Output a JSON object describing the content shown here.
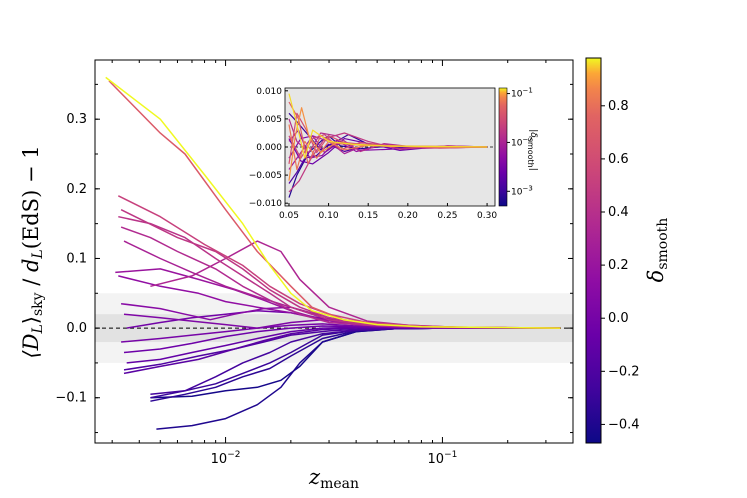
{
  "chart_data": {
    "type": "line",
    "xscale": "log",
    "xlabel": "z_mean",
    "ylabel": "⟨D_L⟩_sky / d_L(EdS) − 1",
    "xlim": [
      0.0025,
      0.4
    ],
    "ylim": [
      -0.165,
      0.385
    ],
    "x_tick_labels": [
      {
        "value": 0.01,
        "base": "10",
        "exp": "−2"
      },
      {
        "value": 0.1,
        "base": "10",
        "exp": "−1"
      }
    ],
    "y_ticks": [
      -0.1,
      0.0,
      0.1,
      0.2,
      0.3
    ],
    "y_tick_labels": [
      "−0.1",
      "0.0",
      "0.1",
      "0.2",
      "0.3"
    ],
    "bands": [
      {
        "name": "outer",
        "from": -0.05,
        "to": 0.05
      },
      {
        "name": "inner",
        "from": -0.02,
        "to": 0.02
      }
    ],
    "reference_line": 0.0,
    "colorbar": {
      "label": "δ_smooth",
      "range": [
        -0.47,
        0.98
      ],
      "ticks": [
        -0.4,
        -0.2,
        0.0,
        0.2,
        0.4,
        0.6,
        0.8
      ],
      "tick_labels": [
        "−0.4",
        "−0.2",
        "0.0",
        "0.2",
        "0.4",
        "0.6",
        "0.8"
      ],
      "colormap": "plasma"
    },
    "series": [
      {
        "delta": 0.98,
        "x": [
          0.0028,
          0.005,
          0.008,
          0.012,
          0.016,
          0.02,
          0.025,
          0.035,
          0.05,
          0.08,
          0.15,
          0.35
        ],
        "y": [
          0.36,
          0.3,
          0.22,
          0.15,
          0.09,
          0.05,
          0.025,
          0.012,
          0.005,
          0.002,
          0.001,
          0.0
        ]
      },
      {
        "delta": 0.7,
        "x": [
          0.0029,
          0.005,
          0.0065,
          0.01,
          0.014,
          0.02,
          0.025,
          0.035,
          0.05,
          0.08,
          0.15,
          0.35
        ],
        "y": [
          0.355,
          0.28,
          0.25,
          0.17,
          0.11,
          0.06,
          0.03,
          0.012,
          0.006,
          0.002,
          0.001,
          0.0
        ]
      },
      {
        "delta": 0.52,
        "x": [
          0.0032,
          0.005,
          0.008,
          0.012,
          0.016,
          0.022,
          0.03,
          0.045,
          0.07,
          0.12,
          0.35
        ],
        "y": [
          0.19,
          0.16,
          0.12,
          0.09,
          0.06,
          0.035,
          0.02,
          0.008,
          0.004,
          0.001,
          0.0
        ]
      },
      {
        "delta": 0.45,
        "x": [
          0.0033,
          0.006,
          0.009,
          0.012,
          0.016,
          0.022,
          0.03,
          0.045,
          0.07,
          0.12,
          0.35
        ],
        "y": [
          0.17,
          0.13,
          0.11,
          0.085,
          0.055,
          0.03,
          0.015,
          0.006,
          0.003,
          0.001,
          0.0
        ]
      },
      {
        "delta": 0.42,
        "x": [
          0.0032,
          0.0045,
          0.0065,
          0.009,
          0.012,
          0.016,
          0.02,
          0.03,
          0.045,
          0.08,
          0.35
        ],
        "y": [
          0.16,
          0.15,
          0.13,
          0.1,
          0.075,
          0.05,
          0.03,
          0.012,
          0.005,
          0.002,
          0.0
        ]
      },
      {
        "delta": 0.36,
        "x": [
          0.0033,
          0.0045,
          0.006,
          0.009,
          0.012,
          0.016,
          0.022,
          0.03,
          0.045,
          0.08,
          0.35
        ],
        "y": [
          0.145,
          0.13,
          0.11,
          0.085,
          0.06,
          0.04,
          0.02,
          0.008,
          0.004,
          0.001,
          0.0
        ]
      },
      {
        "delta": 0.3,
        "x": [
          0.0034,
          0.005,
          0.007,
          0.01,
          0.014,
          0.02,
          0.03,
          0.045,
          0.07,
          0.12,
          0.35
        ],
        "y": [
          0.125,
          0.1,
          0.08,
          0.06,
          0.045,
          0.03,
          0.015,
          0.006,
          0.003,
          0.001,
          0.0
        ]
      },
      {
        "delta": 0.33,
        "x": [
          0.0045,
          0.007,
          0.01,
          0.014,
          0.018,
          0.022,
          0.03,
          0.045,
          0.07,
          0.12,
          0.35
        ],
        "y": [
          0.06,
          0.075,
          0.1,
          0.125,
          0.11,
          0.07,
          0.03,
          0.01,
          0.004,
          0.001,
          0.0
        ]
      },
      {
        "delta": 0.2,
        "x": [
          0.0031,
          0.005,
          0.0075,
          0.011,
          0.015,
          0.02,
          0.028,
          0.04,
          0.06,
          0.1,
          0.35
        ],
        "y": [
          0.08,
          0.085,
          0.07,
          0.055,
          0.04,
          0.025,
          0.012,
          0.005,
          0.002,
          0.001,
          0.0
        ]
      },
      {
        "delta": 0.15,
        "x": [
          0.0032,
          0.005,
          0.0075,
          0.01,
          0.014,
          0.02,
          0.028,
          0.04,
          0.06,
          0.1,
          0.35
        ],
        "y": [
          0.075,
          0.06,
          0.05,
          0.038,
          0.03,
          0.022,
          0.012,
          0.005,
          0.002,
          0.001,
          0.0
        ]
      },
      {
        "delta": 0.1,
        "x": [
          0.0033,
          0.005,
          0.0065,
          0.0085,
          0.011,
          0.015,
          0.02,
          0.028,
          0.04,
          0.06,
          0.1,
          0.35
        ],
        "y": [
          0.035,
          0.028,
          0.02,
          0.012,
          0.02,
          0.028,
          0.03,
          0.015,
          0.006,
          0.002,
          0.001,
          0.0
        ]
      },
      {
        "delta": 0.05,
        "x": [
          0.0034,
          0.005,
          0.007,
          0.01,
          0.014,
          0.02,
          0.028,
          0.04,
          0.06,
          0.1,
          0.35
        ],
        "y": [
          0.02,
          0.015,
          0.01,
          0.005,
          0.0,
          0.008,
          0.012,
          0.006,
          0.002,
          0.001,
          0.0
        ]
      },
      {
        "delta": 0.0,
        "x": [
          0.0033,
          0.005,
          0.007,
          0.01,
          0.014,
          0.02,
          0.028,
          0.04,
          0.06,
          0.1,
          0.35
        ],
        "y": [
          -0.02,
          -0.015,
          -0.01,
          -0.005,
          0.0,
          0.004,
          0.006,
          0.003,
          0.001,
          0.0,
          0.0
        ]
      },
      {
        "delta": -0.02,
        "x": [
          0.0035,
          0.005,
          0.007,
          0.01,
          0.014,
          0.02,
          0.03,
          0.045,
          0.07,
          0.12,
          0.35
        ],
        "y": [
          0.0,
          0.008,
          0.015,
          0.02,
          0.025,
          0.022,
          0.012,
          0.005,
          0.002,
          0.001,
          0.0
        ]
      },
      {
        "delta": -0.05,
        "x": [
          0.0034,
          0.005,
          0.007,
          0.01,
          0.014,
          0.02,
          0.028,
          0.04,
          0.06,
          0.1,
          0.35
        ],
        "y": [
          -0.035,
          -0.03,
          -0.022,
          -0.012,
          -0.005,
          0.0,
          0.003,
          0.002,
          0.001,
          0.0,
          0.0
        ]
      },
      {
        "delta": -0.1,
        "x": [
          0.0035,
          0.005,
          0.007,
          0.01,
          0.014,
          0.02,
          0.028,
          0.04,
          0.06,
          0.1,
          0.35
        ],
        "y": [
          -0.05,
          -0.045,
          -0.035,
          -0.025,
          -0.015,
          -0.005,
          0.0,
          0.001,
          0.001,
          0.0,
          0.0
        ]
      },
      {
        "delta": -0.15,
        "x": [
          0.0034,
          0.005,
          0.0075,
          0.011,
          0.015,
          0.02,
          0.028,
          0.04,
          0.06,
          0.1,
          0.35
        ],
        "y": [
          -0.065,
          -0.055,
          -0.045,
          -0.03,
          -0.018,
          -0.008,
          -0.002,
          0.0,
          0.0,
          0.0,
          0.0
        ]
      },
      {
        "delta": -0.2,
        "x": [
          0.0034,
          0.005,
          0.0075,
          0.011,
          0.015,
          0.02,
          0.03,
          0.045,
          0.07,
          0.12,
          0.35
        ],
        "y": [
          -0.06,
          -0.052,
          -0.04,
          -0.03,
          -0.02,
          -0.01,
          -0.004,
          -0.001,
          0.0,
          0.0,
          0.0
        ]
      },
      {
        "delta": -0.25,
        "x": [
          0.0045,
          0.0065,
          0.009,
          0.012,
          0.016,
          0.02,
          0.028,
          0.04,
          0.06,
          0.1,
          0.35
        ],
        "y": [
          -0.095,
          -0.09,
          -0.07,
          -0.05,
          -0.035,
          -0.02,
          -0.008,
          -0.003,
          -0.001,
          0.0,
          0.0
        ]
      },
      {
        "delta": -0.3,
        "x": [
          0.0045,
          0.0065,
          0.009,
          0.012,
          0.016,
          0.02,
          0.028,
          0.04,
          0.06,
          0.1,
          0.35
        ],
        "y": [
          -0.1,
          -0.09,
          -0.08,
          -0.065,
          -0.05,
          -0.035,
          -0.01,
          -0.003,
          -0.001,
          0.0,
          0.0
        ]
      },
      {
        "delta": -0.35,
        "x": [
          0.0045,
          0.0065,
          0.009,
          0.012,
          0.016,
          0.02,
          0.028,
          0.04,
          0.06,
          0.1,
          0.35
        ],
        "y": [
          -0.105,
          -0.095,
          -0.085,
          -0.07,
          -0.058,
          -0.04,
          -0.015,
          -0.004,
          -0.001,
          0.0,
          0.0
        ]
      },
      {
        "delta": -0.4,
        "x": [
          0.0048,
          0.007,
          0.01,
          0.014,
          0.018,
          0.022,
          0.028,
          0.04,
          0.06,
          0.1,
          0.35
        ],
        "y": [
          -0.145,
          -0.14,
          -0.13,
          -0.11,
          -0.085,
          -0.05,
          -0.02,
          -0.005,
          -0.001,
          0.0,
          0.0
        ]
      },
      {
        "delta": -0.44,
        "x": [
          0.0045,
          0.007,
          0.01,
          0.014,
          0.018,
          0.022,
          0.028,
          0.04,
          0.06,
          0.1,
          0.35
        ],
        "y": [
          -0.1,
          -0.098,
          -0.09,
          -0.085,
          -0.075,
          -0.055,
          -0.02,
          -0.005,
          -0.001,
          0.0,
          0.0
        ]
      }
    ],
    "inset": {
      "xlim": [
        0.045,
        0.31
      ],
      "ylim": [
        -0.0105,
        0.0105
      ],
      "x_ticks": [
        0.05,
        0.1,
        0.15,
        0.2,
        0.25,
        0.3
      ],
      "x_tick_labels": [
        "0.05",
        "0.10",
        "0.15",
        "0.20",
        "0.25",
        "0.30"
      ],
      "y_ticks": [
        -0.01,
        -0.005,
        0.0,
        0.005,
        0.01
      ],
      "y_tick_labels": [
        "−0.010",
        "−0.005",
        "0.000",
        "0.005",
        "0.010"
      ],
      "colorbar_label": "|δ_smooth|",
      "colorbar_scale": "log",
      "colorbar_range": [
        0.0005,
        0.13
      ],
      "colorbar_ticks": [
        {
          "value": 0.1,
          "base": "10",
          "exp": "−1"
        },
        {
          "value": 0.01,
          "base": "10",
          "exp": "−2"
        },
        {
          "value": 0.001,
          "base": "10",
          "exp": "−3"
        }
      ],
      "series": [
        {
          "absdelta": 0.12,
          "x": [
            0.05,
            0.06,
            0.07,
            0.08,
            0.1,
            0.13,
            0.17,
            0.22,
            0.3
          ],
          "y": [
            0.0095,
            0.004,
            -0.002,
            0.003,
            0.001,
            0.0005,
            0.0002,
            0.0001,
            0.0
          ]
        },
        {
          "absdelta": 0.09,
          "x": [
            0.05,
            0.058,
            0.066,
            0.075,
            0.09,
            0.11,
            0.14,
            0.18,
            0.24,
            0.3
          ],
          "y": [
            -0.006,
            0.002,
            0.007,
            0.002,
            -0.001,
            0.0008,
            0.0003,
            0.0001,
            0.0,
            0.0
          ]
        },
        {
          "absdelta": 0.07,
          "x": [
            0.05,
            0.06,
            0.07,
            0.085,
            0.1,
            0.12,
            0.15,
            0.2,
            0.3
          ],
          "y": [
            0.004,
            -0.004,
            0.001,
            -0.002,
            0.001,
            -0.0005,
            0.0003,
            0.0001,
            0.0
          ]
        },
        {
          "absdelta": 0.05,
          "x": [
            0.05,
            0.062,
            0.074,
            0.09,
            0.11,
            0.14,
            0.18,
            0.24,
            0.3
          ],
          "y": [
            0.008,
            0.005,
            -0.003,
            0.002,
            0.0006,
            0.0004,
            0.0002,
            0.0001,
            0.0
          ]
        },
        {
          "absdelta": 0.035,
          "x": [
            0.05,
            0.06,
            0.072,
            0.085,
            0.1,
            0.12,
            0.15,
            0.2,
            0.3
          ],
          "y": [
            -0.003,
            0.006,
            0.003,
            -0.001,
            0.002,
            0.0008,
            0.0004,
            0.0001,
            0.0
          ]
        },
        {
          "absdelta": 0.025,
          "x": [
            0.05,
            0.065,
            0.08,
            0.095,
            0.115,
            0.14,
            0.18,
            0.24,
            0.3
          ],
          "y": [
            0.002,
            -0.002,
            0.0015,
            0.0022,
            -0.0005,
            0.0008,
            0.0002,
            -0.0002,
            0.0
          ]
        },
        {
          "absdelta": 0.018,
          "x": [
            0.05,
            0.063,
            0.078,
            0.095,
            0.12,
            0.15,
            0.19,
            0.25,
            0.3
          ],
          "y": [
            -0.008,
            -0.006,
            -0.002,
            0.0015,
            0.0025,
            0.001,
            -0.0004,
            0.0002,
            0.0
          ]
        },
        {
          "absdelta": 0.013,
          "x": [
            0.05,
            0.06,
            0.075,
            0.09,
            0.11,
            0.14,
            0.17,
            0.22,
            0.3
          ],
          "y": [
            0.005,
            0.001,
            -0.001,
            0.0025,
            0.002,
            -0.0008,
            0.0006,
            -0.0002,
            0.0
          ]
        },
        {
          "absdelta": 0.009,
          "x": [
            0.05,
            0.065,
            0.08,
            0.1,
            0.12,
            0.15,
            0.19,
            0.25,
            0.3
          ],
          "y": [
            -0.004,
            -0.001,
            0.002,
            0.001,
            -0.0012,
            0.0006,
            -0.0003,
            0.0001,
            0.0
          ]
        },
        {
          "absdelta": 0.006,
          "x": [
            0.05,
            0.062,
            0.076,
            0.092,
            0.11,
            0.135,
            0.17,
            0.22,
            0.3
          ],
          "y": [
            0.001,
            0.003,
            -0.002,
            -0.0015,
            0.0012,
            -0.0008,
            0.0004,
            -0.0002,
            0.0
          ]
        },
        {
          "absdelta": 0.004,
          "x": [
            0.05,
            0.065,
            0.08,
            0.095,
            0.115,
            0.14,
            0.18,
            0.24,
            0.3
          ],
          "y": [
            -0.002,
            0.0015,
            0.002,
            -0.001,
            0.001,
            -0.0006,
            -0.0004,
            0.0001,
            0.0
          ]
        },
        {
          "absdelta": 0.0025,
          "x": [
            0.05,
            0.065,
            0.08,
            0.1,
            0.12,
            0.15,
            0.19,
            0.25,
            0.3
          ],
          "y": [
            0.0015,
            -0.0025,
            -0.003,
            -0.001,
            0.0015,
            0.0006,
            -0.0006,
            0.0002,
            0.0
          ]
        },
        {
          "absdelta": 0.0015,
          "x": [
            0.05,
            0.06,
            0.07,
            0.085,
            0.1,
            0.12,
            0.15,
            0.2,
            0.3
          ],
          "y": [
            -0.0065,
            -0.0045,
            -0.002,
            -0.0015,
            0.0005,
            -0.0008,
            0.0004,
            -0.0002,
            0.0
          ]
        },
        {
          "absdelta": 0.001,
          "x": [
            0.05,
            0.06,
            0.075,
            0.09,
            0.11,
            0.125,
            0.15,
            0.2,
            0.3
          ],
          "y": [
            0.006,
            0.0045,
            0.002,
            -0.0005,
            0.001,
            0.0022,
            0.0005,
            0.0,
            0.0
          ]
        },
        {
          "absdelta": 0.0007,
          "x": [
            0.05,
            0.06,
            0.075,
            0.09,
            0.1,
            0.115,
            0.14,
            0.18,
            0.24,
            0.3
          ],
          "y": [
            -0.009,
            -0.005,
            -0.001,
            0.001,
            0.002,
            0.0002,
            -0.0003,
            0.0002,
            0.0,
            0.0
          ]
        }
      ]
    }
  }
}
